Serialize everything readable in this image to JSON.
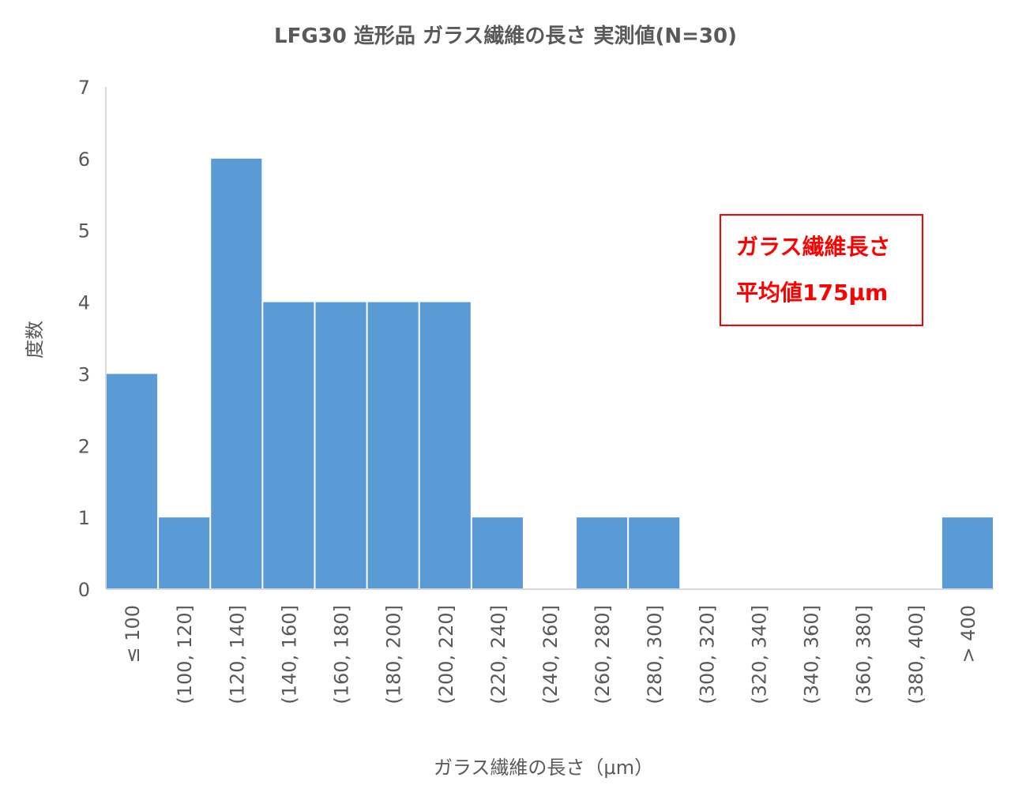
{
  "chart_data": {
    "type": "bar",
    "title": "LFG30 造形品 ガラス繊維の長さ 実測値(N=30)",
    "xlabel": "ガラス繊維の長さ（μm）",
    "ylabel": "度数",
    "categories": [
      "≤ 100",
      "(100, 120]",
      "(120, 140]",
      "(140, 160]",
      "(160, 180]",
      "(180, 200]",
      "(200, 220]",
      "(220, 240]",
      "(240, 260]",
      "(260, 280]",
      "(280, 300]",
      "(300, 320]",
      "(320, 340]",
      "(340, 360]",
      "(360, 380]",
      "(380, 400]",
      "> 400"
    ],
    "values": [
      3,
      1,
      6,
      4,
      4,
      4,
      4,
      1,
      0,
      1,
      1,
      0,
      0,
      0,
      0,
      0,
      1
    ],
    "ylim": [
      0,
      7
    ],
    "yticks": [
      "0",
      "1",
      "2",
      "3",
      "4",
      "5",
      "6",
      "7"
    ],
    "grid": false,
    "bar_color": "#5b9bd5",
    "annotation": {
      "line1": "ガラス繊維長さ",
      "line2": "平均値175μm",
      "color": "#ff0000"
    }
  }
}
